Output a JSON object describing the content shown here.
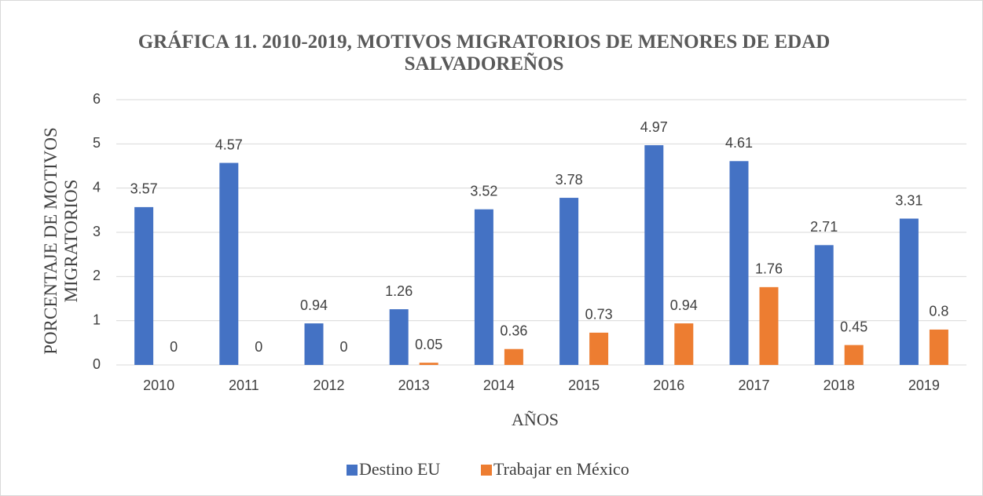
{
  "chart_data": {
    "type": "bar",
    "title": "GRÁFICA 11. 2010-2019, MOTIVOS MIGRATORIOS DE MENORES DE EDAD SALVADOREÑOS",
    "x_label": "AÑOS",
    "y_label": "PORCENTAJE DE MOTIVOS MIGRATORIOS",
    "categories": [
      "2010",
      "2011",
      "2012",
      "2013",
      "2014",
      "2015",
      "2016",
      "2017",
      "2018",
      "2019"
    ],
    "series": [
      {
        "name": "Destino EU",
        "color": "#4472c4",
        "values": [
          3.57,
          4.57,
          0.94,
          1.26,
          3.52,
          3.78,
          4.97,
          4.61,
          2.71,
          3.31
        ]
      },
      {
        "name": "Trabajar en México",
        "color": "#ed7d31",
        "values": [
          0,
          0,
          0,
          0.05,
          0.36,
          0.73,
          0.94,
          1.76,
          0.45,
          0.8
        ]
      }
    ],
    "ylim": [
      0,
      6
    ],
    "yticks": [
      0,
      1,
      2,
      3,
      4,
      5,
      6
    ],
    "grid": true,
    "legend": "bottom"
  }
}
